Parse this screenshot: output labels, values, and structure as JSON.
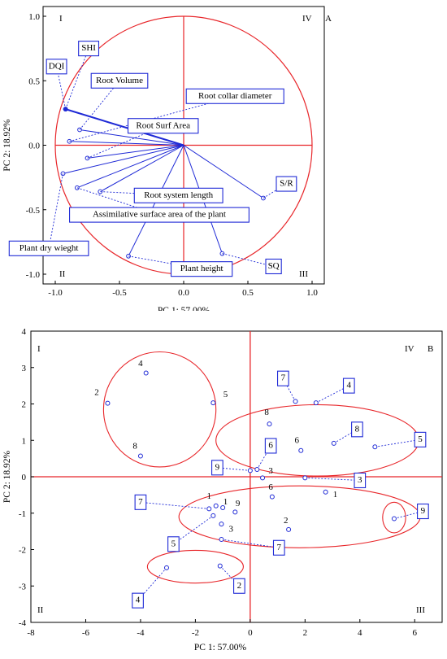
{
  "colors": {
    "red": "#e8262a",
    "blue": "#1f2ad6",
    "axis": "#000000"
  },
  "chart_data": [
    {
      "type": "scatter",
      "panel": "A",
      "xlabel": "PC 1: 57.00%",
      "ylabel": "PC 2: 18.92%",
      "xlim": [
        -1.0,
        1.0
      ],
      "ylim": [
        -1.0,
        1.0
      ],
      "xticks": [
        "-1.0",
        "-0.5",
        "0.0",
        "0.5",
        "1.0"
      ],
      "yticks": [
        "1.0",
        "0.5",
        "0.0",
        "-0.5",
        "-1.0"
      ],
      "quadrants": {
        "tl": "I",
        "tr": "IV",
        "bl": "II",
        "br": "III"
      },
      "unit_circle": true,
      "vectors": [
        {
          "name": "SHI",
          "x": -0.92,
          "y": 0.28,
          "lx": -0.74,
          "ly": 0.75
        },
        {
          "name": "DQI",
          "x": -0.92,
          "y": 0.28,
          "lx": -0.99,
          "ly": 0.61
        },
        {
          "name": "Root Volume",
          "x": -0.81,
          "y": 0.12,
          "lx": -0.5,
          "ly": 0.5
        },
        {
          "name": "Root collar diameter",
          "x": -0.89,
          "y": 0.03,
          "lx": 0.4,
          "ly": 0.38
        },
        {
          "name": "Root Surf Area",
          "x": -0.75,
          "y": -0.1,
          "lx": -0.16,
          "ly": 0.15
        },
        {
          "name": "Root system length",
          "x": -0.65,
          "y": -0.36,
          "lx": -0.04,
          "ly": -0.39
        },
        {
          "name": "Assimilative surface area of the plant",
          "x": -0.83,
          "y": -0.33,
          "lx": -0.19,
          "ly": -0.54
        },
        {
          "name": "Plant dry wieght",
          "x": -0.94,
          "y": -0.22,
          "lx": -1.05,
          "ly": -0.8
        },
        {
          "name": "Plant height",
          "x": -0.43,
          "y": -0.86,
          "lx": 0.14,
          "ly": -0.96
        },
        {
          "name": "SQ",
          "x": 0.3,
          "y": -0.84,
          "lx": 0.7,
          "ly": -0.94
        },
        {
          "name": "S/R",
          "x": 0.62,
          "y": -0.41,
          "lx": 0.8,
          "ly": -0.3
        }
      ]
    },
    {
      "type": "scatter",
      "panel": "B",
      "xlabel": "PC 1: 57.00%",
      "ylabel": "PC 2: 18.92%",
      "xlim": [
        -8,
        7
      ],
      "ylim": [
        -4,
        4
      ],
      "xticks": [
        "-8",
        "-6",
        "-4",
        "-2",
        "0",
        "2",
        "4",
        "6"
      ],
      "yticks": [
        "4",
        "3",
        "2",
        "1",
        "0",
        "-1",
        "-2",
        "-3",
        "-4"
      ],
      "quadrants": {
        "tl": "I",
        "tr": "IV",
        "bl": "II",
        "br": "III"
      },
      "points": [
        {
          "x": -3.8,
          "y": 2.85,
          "label": "4",
          "boxed": false,
          "lx": -4.0,
          "ly": 3.1
        },
        {
          "x": -5.2,
          "y": 2.02,
          "label": "2",
          "boxed": false,
          "lx": -5.6,
          "ly": 2.3
        },
        {
          "x": -1.35,
          "y": 2.03,
          "label": "5",
          "boxed": false,
          "lx": -0.9,
          "ly": 2.25
        },
        {
          "x": -4.0,
          "y": 0.57,
          "label": "8",
          "boxed": false,
          "lx": -4.2,
          "ly": 0.83
        },
        {
          "x": 0.7,
          "y": 1.45,
          "label": "8",
          "boxed": false,
          "lx": 0.6,
          "ly": 1.75
        },
        {
          "x": 1.65,
          "y": 2.07,
          "label": "7",
          "boxed": true,
          "lx": 1.2,
          "ly": 2.7
        },
        {
          "x": 2.4,
          "y": 2.03,
          "label": "4",
          "boxed": true,
          "lx": 3.6,
          "ly": 2.5
        },
        {
          "x": 1.85,
          "y": 0.72,
          "label": "6",
          "boxed": false,
          "lx": 1.7,
          "ly": 0.98
        },
        {
          "x": 3.05,
          "y": 0.92,
          "label": "8",
          "boxed": true,
          "lx": 3.9,
          "ly": 1.3
        },
        {
          "x": 4.55,
          "y": 0.82,
          "label": "5",
          "boxed": true,
          "lx": 6.2,
          "ly": 1.02
        },
        {
          "x": 0.25,
          "y": 0.2,
          "label": "6",
          "boxed": true,
          "lx": 0.75,
          "ly": 0.85
        },
        {
          "x": 0.0,
          "y": 0.17,
          "label": "9",
          "boxed": true,
          "lx": -1.2,
          "ly": 0.25
        },
        {
          "x": 0.45,
          "y": -0.03,
          "label": "3",
          "boxed": false,
          "lx": 0.75,
          "ly": 0.15
        },
        {
          "x": 2.0,
          "y": -0.03,
          "label": "3",
          "boxed": true,
          "lx": 4.0,
          "ly": -0.1
        },
        {
          "x": 2.75,
          "y": -0.42,
          "label": "1",
          "boxed": false,
          "lx": 3.1,
          "ly": -0.5
        },
        {
          "x": 0.8,
          "y": -0.55,
          "label": "6",
          "boxed": false,
          "lx": 0.75,
          "ly": -0.3
        },
        {
          "x": 5.25,
          "y": -1.15,
          "label": "9",
          "boxed": true,
          "lx": 6.3,
          "ly": -0.95
        },
        {
          "x": 1.4,
          "y": -1.45,
          "label": "2",
          "boxed": false,
          "lx": 1.3,
          "ly": -1.22
        },
        {
          "x": -1.25,
          "y": -0.8,
          "label": "1",
          "boxed": false,
          "lx": -1.5,
          "ly": -0.55
        },
        {
          "x": -1.5,
          "y": -0.88,
          "label": "7",
          "boxed": true,
          "lx": -4.0,
          "ly": -0.7
        },
        {
          "x": -1.0,
          "y": -0.85,
          "label": "1",
          "boxed": false,
          "lx": -0.9,
          "ly": -0.7
        },
        {
          "x": -0.55,
          "y": -0.97,
          "label": "9",
          "boxed": false,
          "lx": -0.45,
          "ly": -0.75
        },
        {
          "x": -1.35,
          "y": -1.07,
          "label": "5",
          "boxed": true,
          "lx": -2.8,
          "ly": -1.85
        },
        {
          "x": -1.05,
          "y": -1.3,
          "label": "3",
          "boxed": false,
          "lx": -0.7,
          "ly": -1.45
        },
        {
          "x": -1.05,
          "y": -1.72,
          "label": "7",
          "boxed": true,
          "lx": 1.05,
          "ly": -1.95
        },
        {
          "x": -3.05,
          "y": -2.5,
          "label": "4",
          "boxed": true,
          "lx": -4.1,
          "ly": -3.4
        },
        {
          "x": -1.1,
          "y": -2.45,
          "label": "2",
          "boxed": true,
          "lx": -0.4,
          "ly": -3.0
        }
      ],
      "ellipses": [
        {
          "cx": -3.3,
          "cy": 1.85,
          "rx": 2.05,
          "ry": 1.58
        },
        {
          "cx": 2.45,
          "cy": 1.0,
          "rx": 3.7,
          "ry": 0.98
        },
        {
          "cx": 1.8,
          "cy": -1.1,
          "rx": 4.4,
          "ry": 0.85
        },
        {
          "cx": 5.25,
          "cy": -1.12,
          "rx": 0.42,
          "ry": 0.42
        },
        {
          "cx": -2.0,
          "cy": -2.47,
          "rx": 1.75,
          "ry": 0.45
        }
      ]
    }
  ]
}
